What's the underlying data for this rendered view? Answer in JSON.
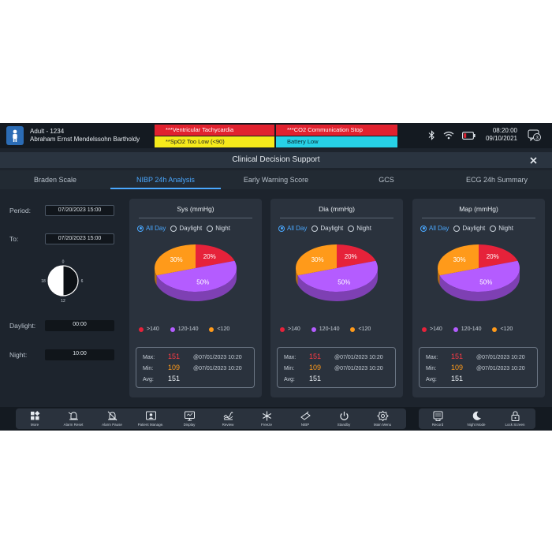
{
  "topbar": {
    "patient_type": "Adult - 1234",
    "patient_name": "Abraham Ernst Mendelssohn Bartholdy",
    "alarms": [
      {
        "text": "***Ventricular Tachycardia",
        "color": "#e1222f"
      },
      {
        "text": "***CO2 Communication Stop",
        "color": "#e1222f"
      },
      {
        "text": "**SpO2 Too Low (<90)",
        "color": "#f5ea1b"
      },
      {
        "text": "Battery Low",
        "color": "#27d1e6"
      }
    ],
    "time": "08:20:00",
    "date": "09/10/2021",
    "notification_count": "3",
    "icons": [
      "bluetooth-icon",
      "wifi-icon",
      "battery-icon"
    ]
  },
  "window": {
    "title": "Clinical Decision Support",
    "tabs": [
      {
        "label": "Braden Scale",
        "active": false
      },
      {
        "label": "NIBP 24h Analysis",
        "active": true
      },
      {
        "label": "Early Warning Score",
        "active": false
      },
      {
        "label": "GCS",
        "active": false
      },
      {
        "label": "ECG 24h Summary",
        "active": false
      }
    ]
  },
  "filters": {
    "period_label": "Period:",
    "period_value": "07/20/2023 15:00",
    "to_label": "To:",
    "to_value": "07/20/2023 15:00",
    "clock_ticks": [
      "0",
      "6",
      "12",
      "18"
    ],
    "daylight_label": "Daylight:",
    "daylight_value": "00:00",
    "night_label": "Night:",
    "night_value": "10:00"
  },
  "radio_options": [
    "All Day",
    "Daylight",
    "Night"
  ],
  "legend": [
    {
      "label": ">140",
      "color": "#e6223a"
    },
    {
      "label": "120-140",
      "color": "#b45cff"
    },
    {
      "label": "<120",
      "color": "#ff9a1a"
    }
  ],
  "stat_labels": {
    "max": "Max:",
    "min": "Min:",
    "avg": "Avg:"
  },
  "cards": [
    {
      "title": "Sys (mmHg)",
      "max": "151",
      "max_time": "@07/01/2023 10:20",
      "min": "109",
      "min_time": "@07/01/2023 10:20",
      "avg": "151"
    },
    {
      "title": "Dia (mmHg)",
      "max": "151",
      "max_time": "@07/01/2023 10:20",
      "min": "109",
      "min_time": "@07/01/2023 10:20",
      "avg": "151"
    },
    {
      "title": "Map (mmHg)",
      "max": "151",
      "max_time": "@07/01/2023 10:20",
      "min": "109",
      "min_time": "@07/01/2023 10:20",
      "avg": "151"
    }
  ],
  "chart_data": [
    {
      "type": "pie",
      "title": "Sys (mmHg)",
      "categories": [
        ">140",
        "120-140",
        "<120"
      ],
      "values": [
        20,
        50,
        30
      ],
      "labels": [
        "20%",
        "50%",
        "30%"
      ],
      "selected_range": "All Day"
    },
    {
      "type": "pie",
      "title": "Dia (mmHg)",
      "categories": [
        ">140",
        "120-140",
        "<120"
      ],
      "values": [
        20,
        50,
        30
      ],
      "labels": [
        "20%",
        "50%",
        "30%"
      ],
      "selected_range": "All Day"
    },
    {
      "type": "pie",
      "title": "Map (mmHg)",
      "categories": [
        ">140",
        "120-140",
        "<120"
      ],
      "values": [
        20,
        50,
        30
      ],
      "labels": [
        "20%",
        "50%",
        "30%"
      ],
      "selected_range": "All Day"
    }
  ],
  "toolbar": {
    "left": [
      {
        "label": "More",
        "icon": "grid-icon"
      },
      {
        "label": "Alarm Reset",
        "icon": "alarm-reset-icon"
      },
      {
        "label": "Alarm Pause",
        "icon": "alarm-pause-icon"
      },
      {
        "label": "Patient Manage.",
        "icon": "patient-manage-icon"
      },
      {
        "label": "Display",
        "icon": "display-icon"
      },
      {
        "label": "Review",
        "icon": "review-icon"
      },
      {
        "label": "Freeze",
        "icon": "snowflake-icon"
      },
      {
        "label": "NIBP",
        "icon": "nibp-cuff-icon"
      },
      {
        "label": "Standby",
        "icon": "power-icon"
      },
      {
        "label": "Main Menu",
        "icon": "gear-icon"
      }
    ],
    "right": [
      {
        "label": "Record",
        "icon": "record-icon"
      },
      {
        "label": "Night Mode",
        "icon": "moon-icon"
      },
      {
        "label": "Lock Screen",
        "icon": "lock-icon"
      }
    ]
  }
}
